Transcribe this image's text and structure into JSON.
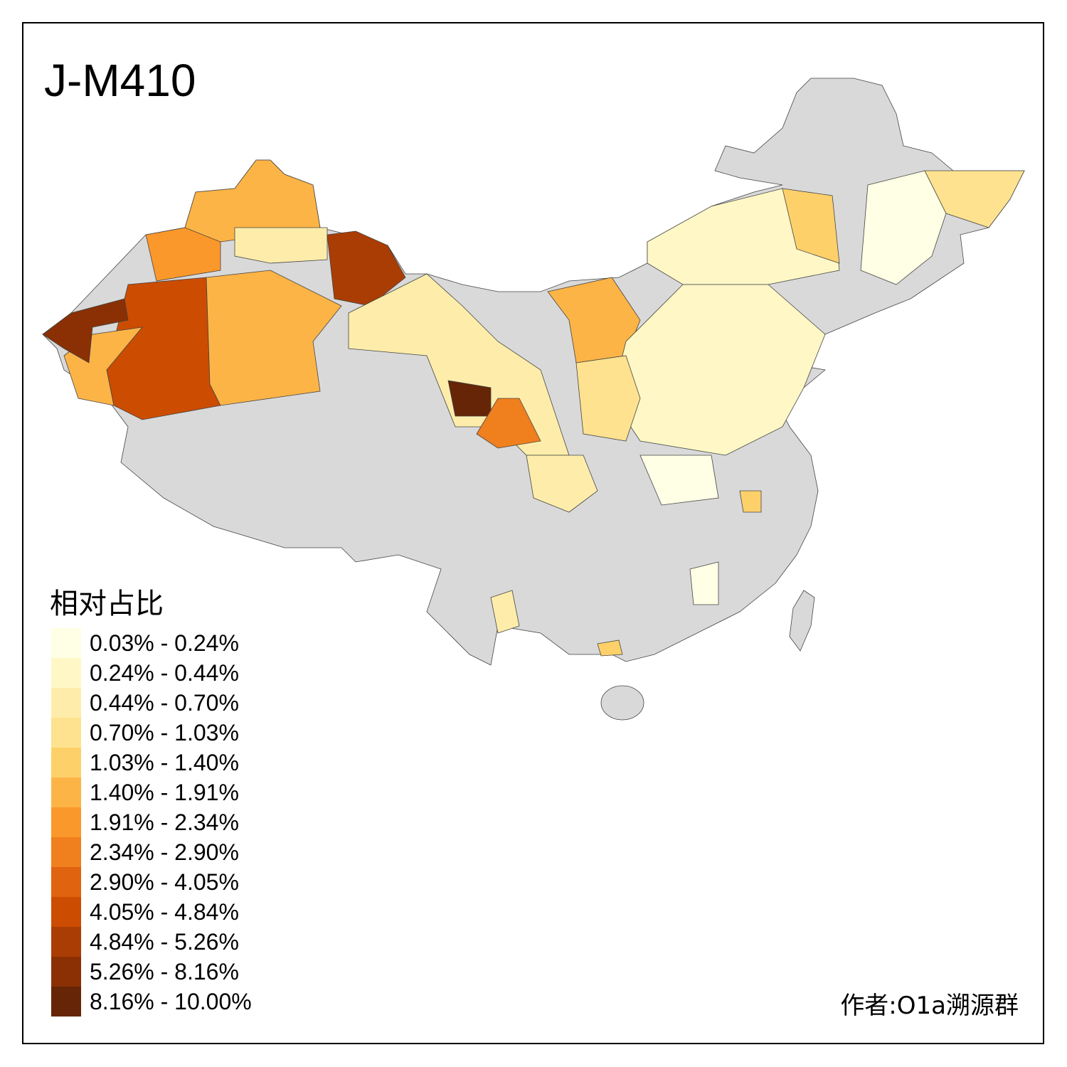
{
  "title": "J-M410",
  "legend": {
    "title": "相对占比",
    "items": [
      {
        "label": "0.03% - 0.24%",
        "color": "#FFFFE5"
      },
      {
        "label": "0.24% - 0.44%",
        "color": "#FFF7C6"
      },
      {
        "label": "0.44% - 0.70%",
        "color": "#FEEDAA"
      },
      {
        "label": "0.70% - 1.03%",
        "color": "#FEE28F"
      },
      {
        "label": "1.03% - 1.40%",
        "color": "#FED06A"
      },
      {
        "label": "1.40% - 1.91%",
        "color": "#FDB446"
      },
      {
        "label": "1.91% - 2.34%",
        "color": "#FB982B"
      },
      {
        "label": "2.34% - 2.90%",
        "color": "#F07F1E"
      },
      {
        "label": "2.90% - 4.05%",
        "color": "#E0630F"
      },
      {
        "label": "4.05% - 4.84%",
        "color": "#CC4C02"
      },
      {
        "label": "4.84% - 5.26%",
        "color": "#AA3D04"
      },
      {
        "label": "5.26% - 8.16%",
        "color": "#8A3004"
      },
      {
        "label": "8.16% - 10.00%",
        "color": "#662506"
      }
    ]
  },
  "no_data_color": "#D9D9D9",
  "credit": "作者:O1a溯源群"
}
